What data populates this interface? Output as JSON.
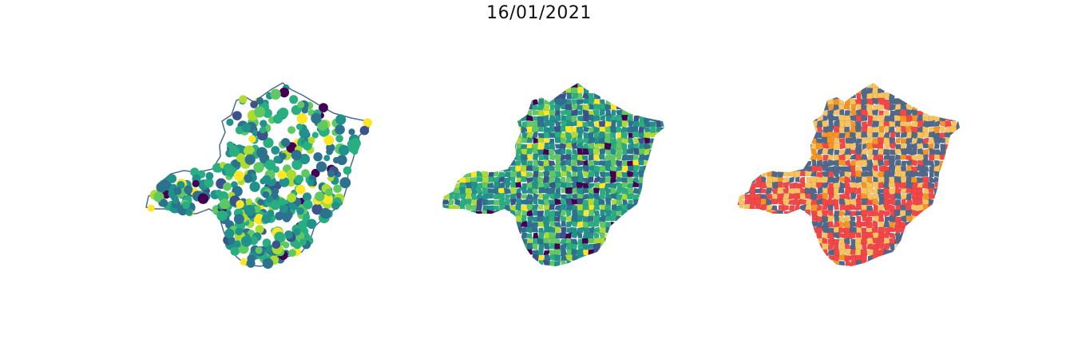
{
  "figure": {
    "title": "16/01/2021"
  },
  "colors": {
    "border": "#4d6a8c",
    "viridis": [
      "#440154",
      "#3b528b",
      "#2c728e",
      "#21918c",
      "#28ae80",
      "#5ec962",
      "#addc30",
      "#fde725"
    ],
    "categories": [
      "#50698a",
      "#fac35a",
      "#f54545",
      "#f7931e"
    ]
  },
  "panels": [
    {
      "name": "scatter",
      "kind": "points"
    },
    {
      "name": "choropleth",
      "kind": "filled-municipalities"
    },
    {
      "name": "categorical",
      "kind": "filled-municipalities"
    }
  ]
}
